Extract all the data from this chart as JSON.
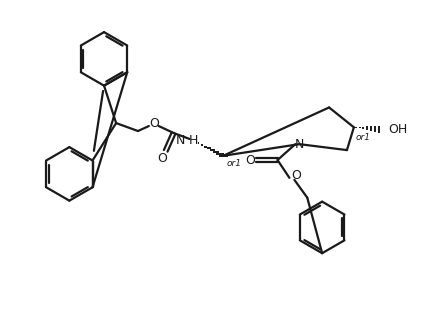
{
  "bg_color": "#ffffff",
  "line_color": "#1a1a1a",
  "line_width": 1.6,
  "fig_width": 4.48,
  "fig_height": 3.22,
  "dpi": 100,
  "or1_label": "or1",
  "oh_label": "OH",
  "nh_label": "H",
  "o_label": "O",
  "n_label": "N"
}
